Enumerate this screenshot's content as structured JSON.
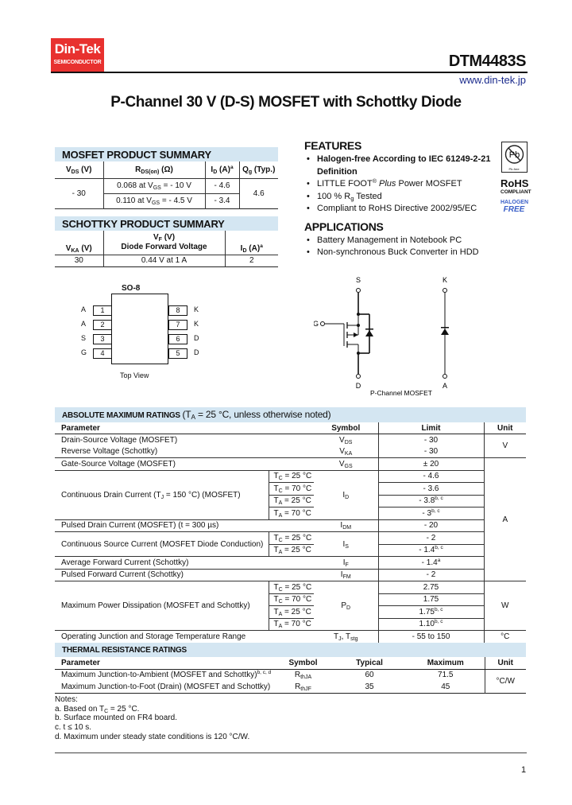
{
  "header": {
    "logo_line1": "Din-Tek",
    "logo_line2": "SEMICONDUCTOR",
    "brand_color": "#e8312f",
    "part_number": "DTM4483S",
    "website": "www.din-tek.jp",
    "website_color": "#1a2a8c",
    "title": "P-Channel 30 V (D-S) MOSFET with Schottky Diode"
  },
  "colors": {
    "section_bar": "#d4e6f2",
    "halogen_free": "#3a5fc8"
  },
  "mosfet_summary": {
    "title": "MOSFET PRODUCT SUMMARY",
    "headers": [
      [
        "V",
        {
          "sub": "DS"
        },
        " (V)"
      ],
      [
        "R",
        {
          "sub": "DS(on)"
        },
        " (Ω)"
      ],
      [
        "I",
        {
          "sub": "D"
        },
        " (A)",
        {
          "sup": "a"
        }
      ],
      [
        "Q",
        {
          "sub": "g"
        },
        " (Typ.)"
      ]
    ],
    "vds": "- 30",
    "rows": [
      {
        "rds": [
          "0.068 at V",
          {
            "sub": "GS"
          },
          " = - 10 V"
        ],
        "id": "- 4.6"
      },
      {
        "rds": [
          "0.110 at V",
          {
            "sub": "GS"
          },
          " = - 4.5 V"
        ],
        "id": "- 3.4"
      }
    ],
    "qg": "4.6"
  },
  "schottky_summary": {
    "title": "SCHOTTKY PRODUCT SUMMARY",
    "headers": [
      [
        "V",
        {
          "sub": "KA"
        },
        " (V)"
      ],
      [
        "V",
        {
          "sub": "F"
        },
        " (V)"
      ],
      [
        "I",
        {
          "sub": "D"
        },
        " (A)",
        {
          "sup": "a"
        }
      ]
    ],
    "vf_subtitle": "Diode Forward Voltage",
    "row": {
      "vka": "30",
      "vf": "0.44 V at 1 A",
      "id": "2"
    }
  },
  "features": {
    "title": "FEATURES",
    "items": [
      [
        "Halogen-free According to IEC 61249-2-21 Definition"
      ],
      [
        "LITTLE FOOT",
        {
          "sup": "®"
        },
        " ",
        {
          "i": "Plus"
        },
        " Power MOSFET"
      ],
      [
        "100 % R",
        {
          "sub": "g"
        },
        " Tested"
      ],
      [
        "Compliant to RoHS Directive 2002/95/EC"
      ]
    ]
  },
  "rohs_badge": {
    "pb_label": "Pb-free",
    "rohs": "RoHS",
    "compliant": "COMPLIANT",
    "halogen": "HALOGEN",
    "free": "FREE"
  },
  "applications": {
    "title": "APPLICATIONS",
    "items": [
      "Battery Management in Notebook PC",
      "Non-synchronous Buck Converter in HDD"
    ]
  },
  "package": {
    "name": "SO-8",
    "view": "Top View",
    "left_pins": [
      {
        "num": "1",
        "label": "A"
      },
      {
        "num": "2",
        "label": "A"
      },
      {
        "num": "3",
        "label": "S"
      },
      {
        "num": "4",
        "label": "G"
      }
    ],
    "right_pins": [
      {
        "num": "8",
        "label": "K"
      },
      {
        "num": "7",
        "label": "K"
      },
      {
        "num": "6",
        "label": "D"
      },
      {
        "num": "5",
        "label": "D"
      }
    ]
  },
  "schematic": {
    "source": "S",
    "gate": "G",
    "drain": "D",
    "cathode": "K",
    "anode": "A",
    "caption": "P-Channel MOSFET"
  },
  "abs_max": {
    "title": "ABSOLUTE MAXIMUM RATINGS",
    "subtitle": [
      "(T",
      {
        "sub": "A"
      },
      " = 25 °C, unless otherwise noted)"
    ],
    "headers": {
      "parameter": "Parameter",
      "symbol": "Symbol",
      "limit": "Limit",
      "unit": "Unit"
    },
    "groups": [
      {
        "param": [
          "Drain-Source Voltage (MOSFET)"
        ],
        "symbol": [
          "V",
          {
            "sub": "DS"
          }
        ],
        "entries": [
          {
            "limit": [
              "- 30"
            ]
          }
        ]
      },
      {
        "param": [
          "Reverse Voltage (Schottky)"
        ],
        "symbol": [
          "V",
          {
            "sub": "KA"
          }
        ],
        "entries": [
          {
            "limit": [
              "- 30"
            ]
          }
        ]
      },
      {
        "param": [
          "Gate-Source Voltage (MOSFET)"
        ],
        "symbol": [
          "V",
          {
            "sub": "GS"
          }
        ],
        "entries": [
          {
            "limit": [
              "± 20"
            ]
          }
        ]
      },
      {
        "param": [
          "Continuous Drain Current (T",
          {
            "sub": "J"
          },
          " = 150 °C) (MOSFET)"
        ],
        "symbol": [
          "I",
          {
            "sub": "D"
          }
        ],
        "entries": [
          {
            "cond": [
              "T",
              {
                "sub": "C"
              },
              " = 25 °C"
            ],
            "limit": [
              "- 4.6"
            ]
          },
          {
            "cond": [
              "T",
              {
                "sub": "C"
              },
              " = 70 °C"
            ],
            "limit": [
              "- 3.6"
            ]
          },
          {
            "cond": [
              "T",
              {
                "sub": "A"
              },
              " = 25 °C"
            ],
            "limit": [
              "- 3.8",
              {
                "sup": "b, c"
              }
            ]
          },
          {
            "cond": [
              "T",
              {
                "sub": "A"
              },
              " = 70 °C"
            ],
            "limit": [
              "- 3",
              {
                "sup": "b, c"
              }
            ]
          }
        ]
      },
      {
        "param": [
          "Pulsed Drain Current (MOSFET) (t = 300 µs)"
        ],
        "symbol": [
          "I",
          {
            "sub": "DM"
          }
        ],
        "entries": [
          {
            "limit": [
              "- 20"
            ]
          }
        ]
      },
      {
        "param": [
          "Continuous Source Current (MOSFET Diode Conduction)"
        ],
        "symbol": [
          "I",
          {
            "sub": "S"
          }
        ],
        "entries": [
          {
            "cond": [
              "T",
              {
                "sub": "C"
              },
              " = 25 °C"
            ],
            "limit": [
              "- 2"
            ]
          },
          {
            "cond": [
              "T",
              {
                "sub": "A"
              },
              " = 25 °C"
            ],
            "limit": [
              "- 1.4",
              {
                "sup": "b, c"
              }
            ]
          }
        ]
      },
      {
        "param": [
          "Average Forward Current (Schottky)"
        ],
        "symbol": [
          "I",
          {
            "sub": "F"
          }
        ],
        "entries": [
          {
            "limit": [
              "- 1.4",
              {
                "sup": "a"
              }
            ]
          }
        ]
      },
      {
        "param": [
          "Pulsed Forward Current (Schottky)"
        ],
        "symbol": [
          "I",
          {
            "sub": "FM"
          }
        ],
        "entries": [
          {
            "limit": [
              "- 2"
            ]
          }
        ]
      },
      {
        "param": [
          "Maximum Power Dissipation (MOSFET and Schottky)"
        ],
        "symbol": [
          "P",
          {
            "sub": "D"
          }
        ],
        "entries": [
          {
            "cond": [
              "T",
              {
                "sub": "C"
              },
              " = 25 °C"
            ],
            "limit": [
              "2.75"
            ]
          },
          {
            "cond": [
              "T",
              {
                "sub": "C"
              },
              " = 70 °C"
            ],
            "limit": [
              "1.75"
            ]
          },
          {
            "cond": [
              "T",
              {
                "sub": "A"
              },
              " = 25 °C"
            ],
            "limit": [
              "1.75",
              {
                "sup": "b, c"
              }
            ]
          },
          {
            "cond": [
              "T",
              {
                "sub": "A"
              },
              " = 70 °C"
            ],
            "limit": [
              "1.10",
              {
                "sup": "b, c"
              }
            ]
          }
        ]
      },
      {
        "param": [
          "Operating Junction and Storage Temperature Range"
        ],
        "symbol": [
          "T",
          {
            "sub": "J"
          },
          ", T",
          {
            "sub": "stg"
          }
        ],
        "entries": [
          {
            "limit": [
              "- 55 to 150"
            ]
          }
        ]
      }
    ],
    "units": [
      "V",
      "A",
      "W",
      "°C"
    ]
  },
  "thermal": {
    "title": "THERMAL RESISTANCE RATINGS",
    "headers": {
      "parameter": "Parameter",
      "symbol": "Symbol",
      "typical": "Typical",
      "maximum": "Maximum",
      "unit": "Unit"
    },
    "rows": [
      {
        "param": [
          "Maximum Junction-to-Ambient (MOSFET and Schottky)",
          {
            "sup": "b, c, d"
          }
        ],
        "symbol": [
          "R",
          {
            "sub": "thJA"
          }
        ],
        "typical": "60",
        "maximum": "71.5"
      },
      {
        "param": [
          "Maximum Junction-to-Foot (Drain) (MOSFET and Schottky)"
        ],
        "symbol": [
          "R",
          {
            "sub": "thJF"
          }
        ],
        "typical": "35",
        "maximum": "45"
      }
    ],
    "unit": "°C/W"
  },
  "notes": {
    "title": "Notes:",
    "items": [
      [
        "a. Based on T",
        {
          "sub": "C"
        },
        " = 25 °C."
      ],
      [
        "b. Surface mounted on FR4 board."
      ],
      [
        "c. t ≤ 10 s."
      ],
      [
        "d. Maximum under steady state conditions is 120 °C/W."
      ]
    ]
  },
  "footer": {
    "page_number": "1"
  }
}
